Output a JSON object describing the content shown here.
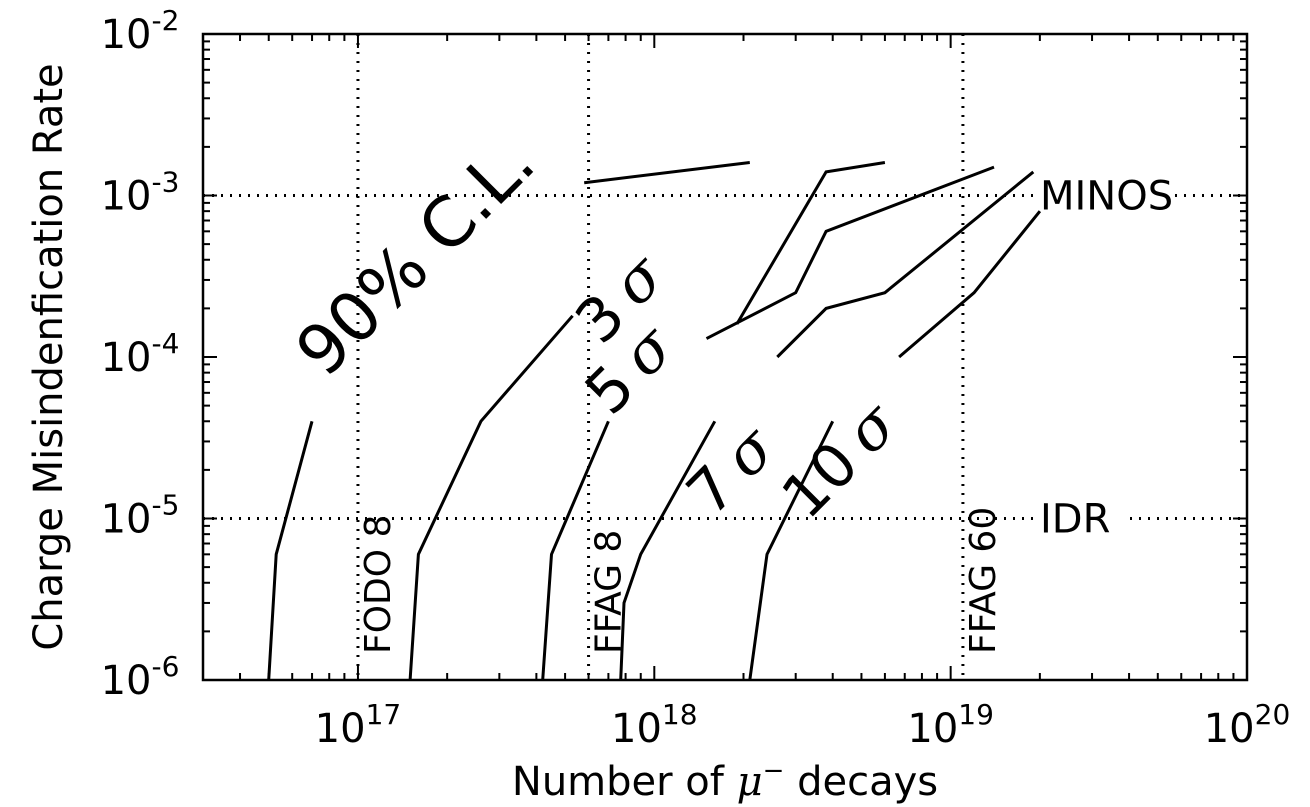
{
  "chart_data": {
    "type": "line",
    "title": "",
    "xlabel_prefix": "Number of ",
    "xlabel_symbol": "μ",
    "xlabel_superscript": "−",
    "xlabel_suffix": " decays",
    "ylabel": "Charge Misindenfication Rate",
    "xscale": "log",
    "yscale": "log",
    "xlim": [
      3e+16,
      1e+20
    ],
    "ylim": [
      1e-06,
      0.01
    ],
    "grid": false,
    "x_ticks": [
      {
        "value": 1e+17,
        "base": "10",
        "exp": "17"
      },
      {
        "value": 1e+18,
        "base": "10",
        "exp": "18"
      },
      {
        "value": 1e+19,
        "base": "10",
        "exp": "19"
      },
      {
        "value": 1e+20,
        "base": "10",
        "exp": "20"
      }
    ],
    "y_ticks": [
      {
        "value": 1e-06,
        "base": "10",
        "exp": "-6"
      },
      {
        "value": 1e-05,
        "base": "10",
        "exp": "-5"
      },
      {
        "value": 0.0001,
        "base": "10",
        "exp": "-4"
      },
      {
        "value": 0.001,
        "base": "10",
        "exp": "-3"
      },
      {
        "value": 0.01,
        "base": "10",
        "exp": "-2"
      }
    ],
    "series": [
      {
        "points": [
          [
            5e+16,
            1e-06
          ],
          [
            5.3e+16,
            6e-06
          ],
          [
            7e+16,
            4e-05
          ]
        ]
      },
      {
        "points": [
          [
            1.5e+17,
            1e-06
          ],
          [
            1.6e+17,
            6e-06
          ],
          [
            2.6e+17,
            4e-05
          ],
          [
            5.3e+17,
            0.00018
          ]
        ]
      },
      {
        "points": [
          [
            5.8e+17,
            0.0012
          ],
          [
            2.1e+18,
            0.0016
          ]
        ]
      },
      {
        "points": [
          [
            4.2e+17,
            1e-06
          ],
          [
            4.5e+17,
            6e-06
          ],
          [
            7e+17,
            4e-05
          ]
        ]
      },
      {
        "points": [
          [
            1.9e+18,
            0.00016
          ],
          [
            3.8e+18,
            0.0014
          ],
          [
            6e+18,
            0.0016
          ]
        ]
      },
      {
        "points": [
          [
            7.7e+17,
            1e-06
          ],
          [
            7.9e+17,
            3e-06
          ],
          [
            9e+17,
            6e-06
          ],
          [
            1.6e+18,
            4e-05
          ]
        ]
      },
      {
        "points": [
          [
            1.5e+18,
            0.00013
          ],
          [
            3e+18,
            0.00025
          ],
          [
            3.8e+18,
            0.0006
          ],
          [
            1.4e+19,
            0.0015
          ]
        ]
      },
      {
        "points": [
          [
            2.1e+18,
            1e-06
          ],
          [
            2.4e+18,
            6e-06
          ],
          [
            4e+18,
            4e-05
          ]
        ]
      },
      {
        "points": [
          [
            2.6e+18,
            0.0001
          ],
          [
            3.8e+18,
            0.0002
          ],
          [
            6e+18,
            0.00025
          ],
          [
            1.9e+19,
            0.0014
          ]
        ]
      },
      {
        "points": [
          [
            6.7e+18,
            0.0001
          ],
          [
            1.2e+19,
            0.00025
          ],
          [
            2e+19,
            0.0008
          ]
        ]
      }
    ],
    "reference_lines": [
      {
        "axis": "x",
        "value": 1e+17,
        "label": "FODO 8"
      },
      {
        "axis": "x",
        "value": 6e+17,
        "label": "FFAG 8"
      },
      {
        "axis": "x",
        "value": 1.1e+19,
        "label": "FFAG 60"
      },
      {
        "axis": "y",
        "value": 0.001,
        "label": "MINOS"
      },
      {
        "axis": "y",
        "value": 1e-05,
        "label": "IDR"
      }
    ],
    "annotations": [
      {
        "text": "90% C.L.",
        "sigma": false,
        "x": 1.6e+17,
        "y": 0.0004,
        "angle": -45,
        "size": 68
      },
      {
        "text": "3",
        "sigma": true,
        "x": 7.8e+17,
        "y": 0.00022,
        "angle": -45,
        "size": 60
      },
      {
        "text": "5",
        "sigma": true,
        "x": 8.4e+17,
        "y": 8e-05,
        "angle": -45,
        "size": 60
      },
      {
        "text": "7",
        "sigma": true,
        "x": 1.85e+18,
        "y": 1.9e-05,
        "angle": -45,
        "size": 60
      },
      {
        "text": "10",
        "sigma": true,
        "x": 4.3e+18,
        "y": 2.2e-05,
        "angle": -45,
        "size": 60
      }
    ]
  }
}
